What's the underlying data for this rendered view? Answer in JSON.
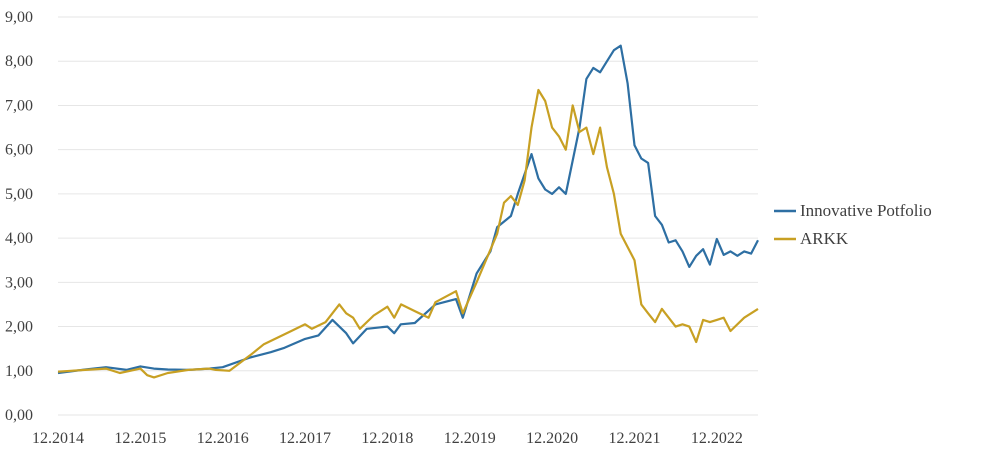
{
  "chart_data": {
    "type": "line",
    "title": "",
    "xlabel": "",
    "ylabel": "",
    "ylim": [
      0,
      9
    ],
    "grid": true,
    "legend_position": "right",
    "y_ticks": [
      "0,00",
      "1,00",
      "2,00",
      "3,00",
      "4,00",
      "5,00",
      "6,00",
      "7,00",
      "8,00",
      "9,00"
    ],
    "x_ticks": [
      "12.2014",
      "12.2015",
      "12.2016",
      "12.2017",
      "12.2018",
      "12.2019",
      "12.2020",
      "12.2021",
      "12.2022"
    ],
    "x_range": [
      2014.917,
      2023.417
    ],
    "series": [
      {
        "name": "Innovative Potfolio",
        "color": "#2e6fa3",
        "points": [
          [
            2014.917,
            0.95
          ],
          [
            2015.25,
            1.03
          ],
          [
            2015.5,
            1.08
          ],
          [
            2015.75,
            1.02
          ],
          [
            2015.917,
            1.1
          ],
          [
            2016.08,
            1.05
          ],
          [
            2016.25,
            1.03
          ],
          [
            2016.5,
            1.02
          ],
          [
            2016.75,
            1.05
          ],
          [
            2016.917,
            1.08
          ],
          [
            2017.25,
            1.3
          ],
          [
            2017.5,
            1.42
          ],
          [
            2017.667,
            1.52
          ],
          [
            2017.917,
            1.72
          ],
          [
            2018.08,
            1.8
          ],
          [
            2018.25,
            2.15
          ],
          [
            2018.417,
            1.85
          ],
          [
            2018.5,
            1.62
          ],
          [
            2018.667,
            1.95
          ],
          [
            2018.917,
            2.0
          ],
          [
            2019.0,
            1.85
          ],
          [
            2019.08,
            2.05
          ],
          [
            2019.25,
            2.08
          ],
          [
            2019.5,
            2.5
          ],
          [
            2019.75,
            2.62
          ],
          [
            2019.833,
            2.2
          ],
          [
            2020.0,
            3.2
          ],
          [
            2020.167,
            3.7
          ],
          [
            2020.25,
            4.25
          ],
          [
            2020.417,
            4.5
          ],
          [
            2020.5,
            5.0
          ],
          [
            2020.667,
            5.9
          ],
          [
            2020.75,
            5.35
          ],
          [
            2020.833,
            5.1
          ],
          [
            2020.917,
            5.0
          ],
          [
            2021.0,
            5.15
          ],
          [
            2021.083,
            5.0
          ],
          [
            2021.25,
            6.5
          ],
          [
            2021.333,
            7.6
          ],
          [
            2021.417,
            7.85
          ],
          [
            2021.5,
            7.75
          ],
          [
            2021.583,
            8.0
          ],
          [
            2021.667,
            8.25
          ],
          [
            2021.75,
            8.35
          ],
          [
            2021.833,
            7.5
          ],
          [
            2021.917,
            6.1
          ],
          [
            2022.0,
            5.8
          ],
          [
            2022.083,
            5.7
          ],
          [
            2022.167,
            4.5
          ],
          [
            2022.25,
            4.3
          ],
          [
            2022.333,
            3.9
          ],
          [
            2022.417,
            3.95
          ],
          [
            2022.5,
            3.7
          ],
          [
            2022.583,
            3.35
          ],
          [
            2022.667,
            3.6
          ],
          [
            2022.75,
            3.75
          ],
          [
            2022.833,
            3.4
          ],
          [
            2022.917,
            3.98
          ],
          [
            2023.0,
            3.62
          ],
          [
            2023.083,
            3.7
          ],
          [
            2023.167,
            3.6
          ],
          [
            2023.25,
            3.7
          ],
          [
            2023.333,
            3.65
          ],
          [
            2023.417,
            3.95
          ]
        ]
      },
      {
        "name": "ARKK",
        "color": "#c8a023",
        "points": [
          [
            2014.917,
            0.98
          ],
          [
            2015.25,
            1.02
          ],
          [
            2015.5,
            1.05
          ],
          [
            2015.667,
            0.95
          ],
          [
            2015.917,
            1.05
          ],
          [
            2016.0,
            0.9
          ],
          [
            2016.083,
            0.85
          ],
          [
            2016.25,
            0.95
          ],
          [
            2016.5,
            1.02
          ],
          [
            2016.75,
            1.05
          ],
          [
            2016.833,
            1.02
          ],
          [
            2017.0,
            1.0
          ],
          [
            2017.25,
            1.35
          ],
          [
            2017.417,
            1.6
          ],
          [
            2017.583,
            1.75
          ],
          [
            2017.75,
            1.9
          ],
          [
            2017.917,
            2.05
          ],
          [
            2018.0,
            1.95
          ],
          [
            2018.167,
            2.1
          ],
          [
            2018.333,
            2.5
          ],
          [
            2018.417,
            2.3
          ],
          [
            2018.5,
            2.2
          ],
          [
            2018.583,
            1.95
          ],
          [
            2018.75,
            2.25
          ],
          [
            2018.917,
            2.45
          ],
          [
            2019.0,
            2.2
          ],
          [
            2019.083,
            2.5
          ],
          [
            2019.25,
            2.35
          ],
          [
            2019.417,
            2.2
          ],
          [
            2019.5,
            2.55
          ],
          [
            2019.75,
            2.8
          ],
          [
            2019.833,
            2.3
          ],
          [
            2020.0,
            3.0
          ],
          [
            2020.25,
            4.1
          ],
          [
            2020.333,
            4.8
          ],
          [
            2020.417,
            4.95
          ],
          [
            2020.5,
            4.75
          ],
          [
            2020.583,
            5.3
          ],
          [
            2020.667,
            6.5
          ],
          [
            2020.75,
            7.35
          ],
          [
            2020.833,
            7.1
          ],
          [
            2020.917,
            6.5
          ],
          [
            2021.0,
            6.3
          ],
          [
            2021.083,
            6.0
          ],
          [
            2021.167,
            7.0
          ],
          [
            2021.25,
            6.4
          ],
          [
            2021.333,
            6.5
          ],
          [
            2021.417,
            5.9
          ],
          [
            2021.5,
            6.5
          ],
          [
            2021.583,
            5.6
          ],
          [
            2021.667,
            5.0
          ],
          [
            2021.75,
            4.1
          ],
          [
            2021.833,
            3.8
          ],
          [
            2021.917,
            3.5
          ],
          [
            2022.0,
            2.5
          ],
          [
            2022.083,
            2.3
          ],
          [
            2022.167,
            2.1
          ],
          [
            2022.25,
            2.4
          ],
          [
            2022.333,
            2.2
          ],
          [
            2022.417,
            2.0
          ],
          [
            2022.5,
            2.05
          ],
          [
            2022.583,
            2.0
          ],
          [
            2022.667,
            1.65
          ],
          [
            2022.75,
            2.15
          ],
          [
            2022.833,
            2.1
          ],
          [
            2022.917,
            2.15
          ],
          [
            2023.0,
            2.2
          ],
          [
            2023.083,
            1.9
          ],
          [
            2023.25,
            2.2
          ],
          [
            2023.417,
            2.4
          ]
        ]
      }
    ]
  }
}
